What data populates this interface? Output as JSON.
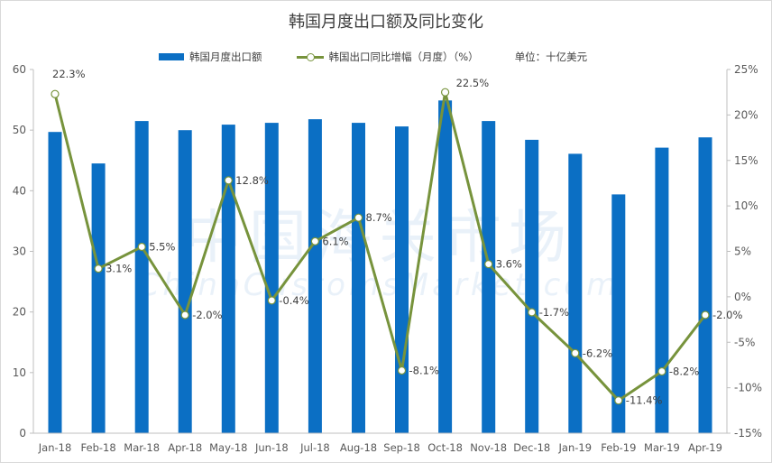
{
  "chart_data": {
    "type": "bar+line",
    "title": "韩国月度出口额及同比变化",
    "categories": [
      "Jan-18",
      "Feb-18",
      "Mar-18",
      "Apr-18",
      "May-18",
      "Jun-18",
      "Jul-18",
      "Aug-18",
      "Sep-18",
      "Oct-18",
      "Nov-18",
      "Dec-18",
      "Jan-19",
      "Feb-19",
      "Mar-19",
      "Apr-19"
    ],
    "series": [
      {
        "name": "韩国月度出口额",
        "type": "bar",
        "axis": "left",
        "color": "#0b6fc4",
        "values": [
          49.7,
          44.5,
          51.5,
          50.0,
          50.9,
          51.2,
          51.8,
          51.2,
          50.6,
          54.9,
          51.5,
          48.4,
          46.1,
          39.4,
          47.1,
          48.8
        ]
      },
      {
        "name": "韩国出口同比增幅（月度）（%）",
        "type": "line",
        "axis": "right",
        "color": "#77933c",
        "values": [
          22.3,
          3.1,
          5.5,
          -2.0,
          12.8,
          -0.4,
          6.1,
          8.7,
          -8.1,
          22.5,
          3.6,
          -1.7,
          -6.2,
          -11.4,
          -8.2,
          -2.0
        ],
        "labels": [
          "22.3%",
          "3.1%",
          "5.5%",
          "-2.0%",
          "12.8%",
          "-0.4%",
          "6.1%",
          "8.7%",
          "-8.1%",
          "22.5%",
          "3.6%",
          "-1.7%",
          "-6.2%",
          "-11.4%",
          "-8.2%",
          "-2.0%"
        ]
      }
    ],
    "left_axis": {
      "min": 0,
      "max": 60,
      "step": 10,
      "ticks": [
        "0",
        "10",
        "20",
        "30",
        "40",
        "50",
        "60"
      ]
    },
    "right_axis": {
      "min": -15,
      "max": 25,
      "step": 5,
      "ticks": [
        "-15%",
        "-10%",
        "-5%",
        "0%",
        "5%",
        "10%",
        "15%",
        "20%",
        "25%"
      ]
    },
    "unit_label": "单位：十亿美元",
    "watermark": {
      "cn": "中国海关市场",
      "en": "ChinaCustomsMarket.com"
    },
    "grid": false,
    "legend_position": "top"
  }
}
